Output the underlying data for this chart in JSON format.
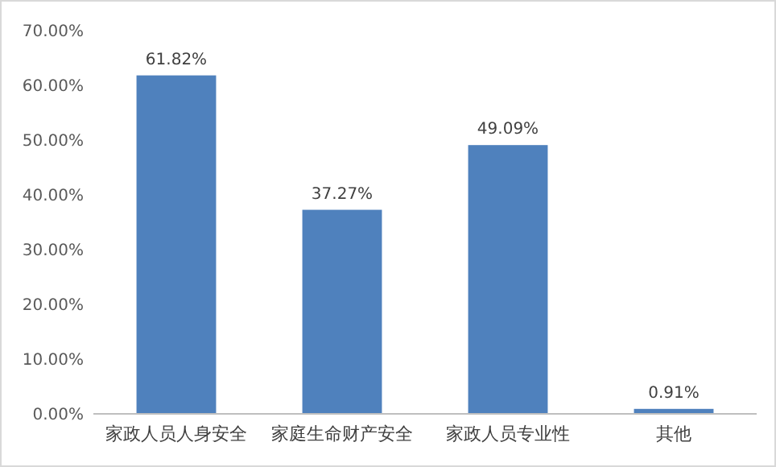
{
  "chart_data": {
    "type": "bar",
    "categories": [
      "家政人员人身安全",
      "家庭生命财产安全",
      "家政人员专业性",
      "其他"
    ],
    "values": [
      61.82,
      37.27,
      49.09,
      0.91
    ],
    "value_labels": [
      "61.82%",
      "37.27%",
      "49.09%",
      "0.91%"
    ],
    "color": "#4f81bd",
    "ylim": [
      0,
      70
    ],
    "yticks": [
      {
        "value": 0,
        "label": "0.00%"
      },
      {
        "value": 10,
        "label": "10.00%"
      },
      {
        "value": 20,
        "label": "20.00%"
      },
      {
        "value": 30,
        "label": "30.00%"
      },
      {
        "value": 40,
        "label": "40.00%"
      },
      {
        "value": 50,
        "label": "50.00%"
      },
      {
        "value": 60,
        "label": "60.00%"
      },
      {
        "value": 70,
        "label": "70.00%"
      }
    ],
    "grid": false
  }
}
